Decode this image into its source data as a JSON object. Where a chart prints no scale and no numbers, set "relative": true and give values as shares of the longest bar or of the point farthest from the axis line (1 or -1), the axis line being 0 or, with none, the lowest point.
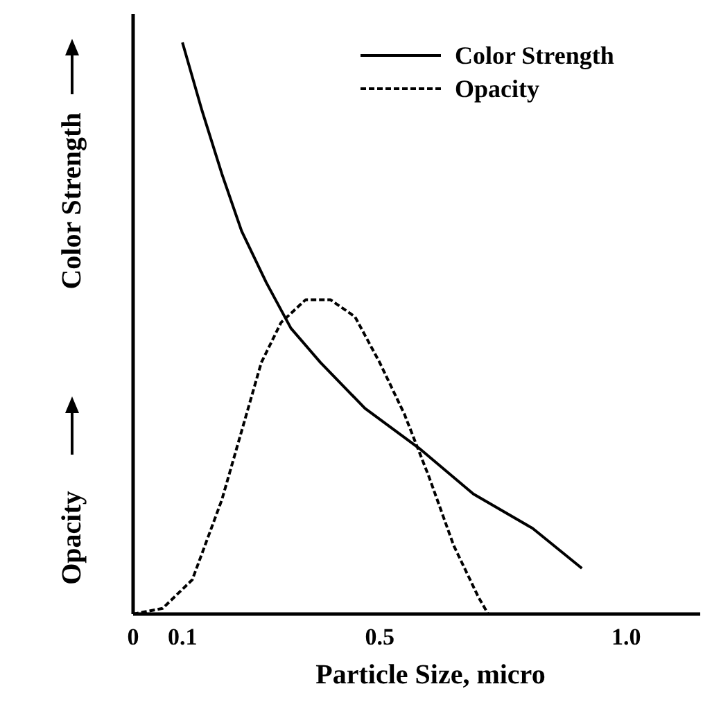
{
  "chart_data": {
    "type": "line",
    "relative": true,
    "xlabel": "Particle Size, micro",
    "ylabel": "Color Strength",
    "y2label": "Opacity",
    "xlim": [
      0,
      1.15
    ],
    "xticks": [
      0,
      0.1,
      0.5,
      {
        "value": 1.0,
        "label": "1.0"
      }
    ],
    "legend": "top right",
    "series": [
      {
        "name": "Color Strength",
        "color": "#000000",
        "line_style": "solid",
        "x": [
          0.1,
          0.14,
          0.18,
          0.22,
          0.27,
          0.32,
          0.38,
          0.47,
          0.58,
          0.69,
          0.81,
          0.91
        ],
        "values": [
          1.0,
          0.88,
          0.77,
          0.67,
          0.58,
          0.5,
          0.44,
          0.36,
          0.29,
          0.21,
          0.15,
          0.08
        ]
      },
      {
        "name": "Opacity",
        "color": "#000000",
        "line_style": "dashed",
        "x": [
          0.0,
          0.06,
          0.12,
          0.18,
          0.22,
          0.26,
          0.3,
          0.35,
          0.4,
          0.45,
          0.5,
          0.55,
          0.6,
          0.65,
          0.7,
          0.72
        ],
        "values": [
          0,
          0.01,
          0.06,
          0.2,
          0.32,
          0.44,
          0.51,
          0.55,
          0.55,
          0.52,
          0.44,
          0.35,
          0.24,
          0.12,
          0.03,
          0
        ]
      }
    ]
  }
}
